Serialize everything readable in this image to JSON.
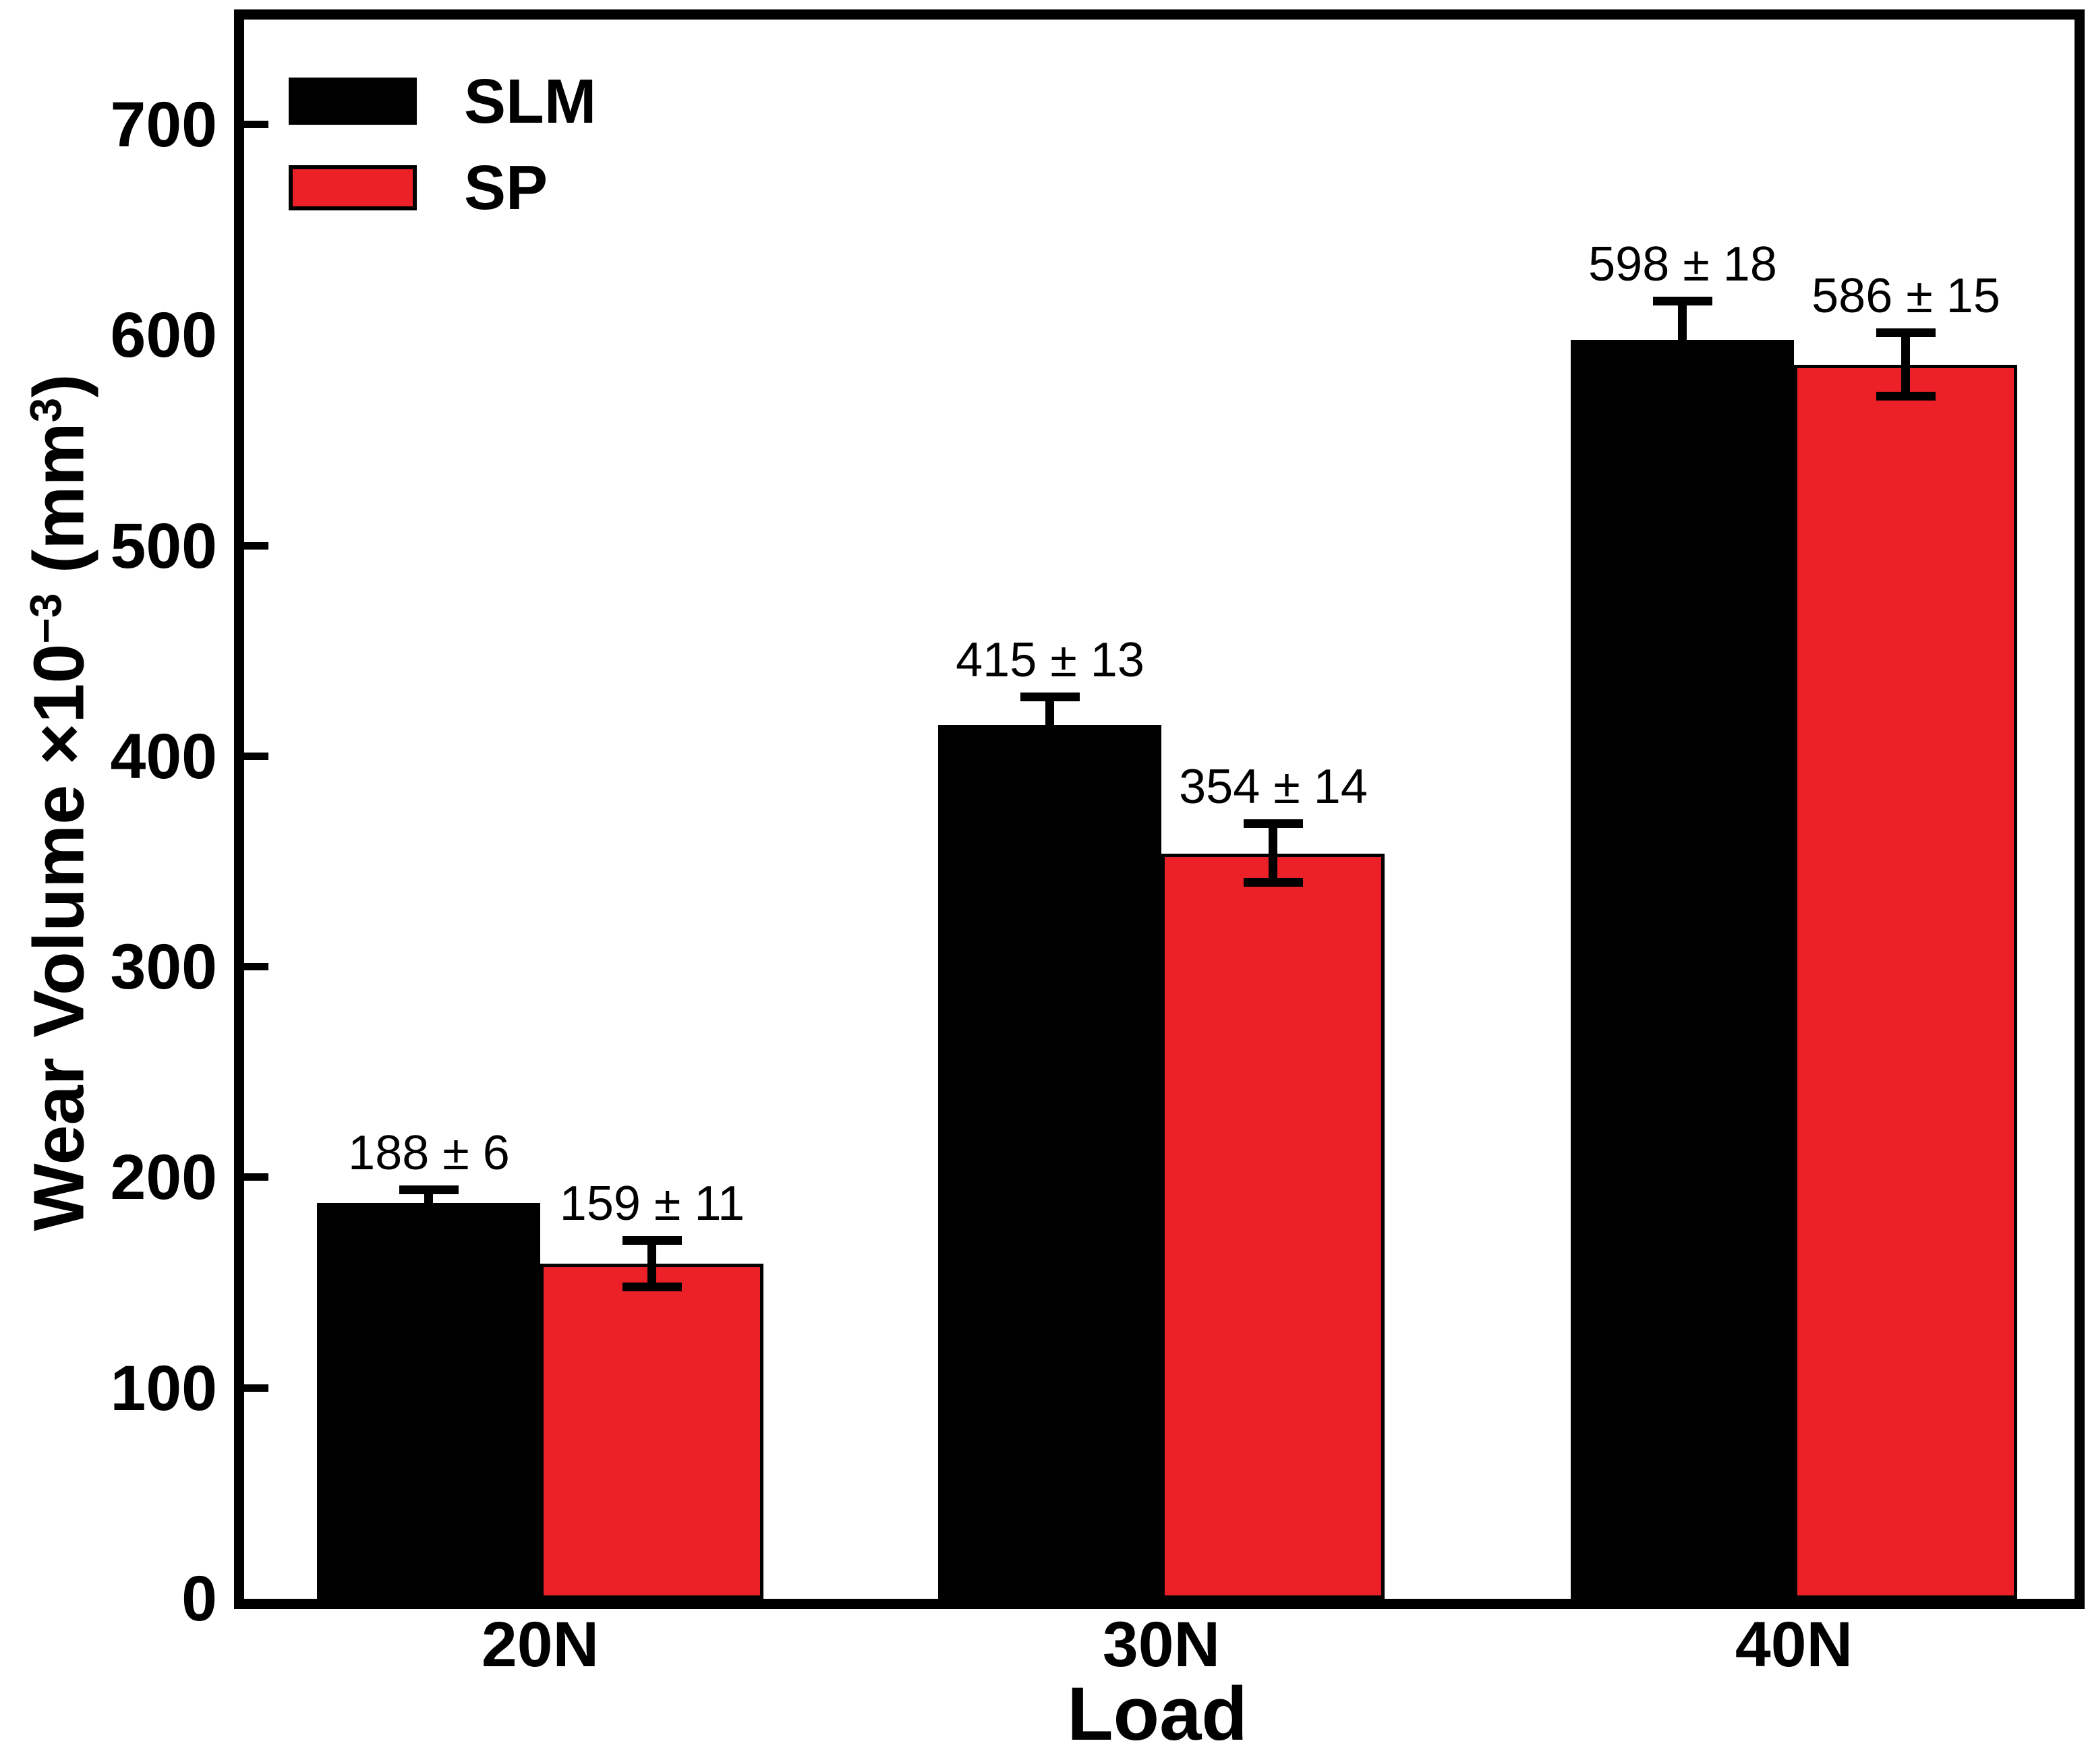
{
  "figure": {
    "background": "#ffffff",
    "axis_color": "#000000"
  },
  "chart_data": {
    "type": "bar",
    "title": "",
    "xlabel": "Load",
    "ylabel": "Wear Volume ×10⁻³ (mm³)",
    "ylabel_parts": {
      "pre": "Wear Volume ×10",
      "sup1": "−3",
      "mid": " (mm",
      "sup2": "3",
      "post": ")"
    },
    "categories": [
      "20N",
      "30N",
      "40N"
    ],
    "series": [
      {
        "name": "SLM",
        "color": "#000000",
        "values": [
          188,
          415,
          598
        ],
        "errors": [
          6,
          13,
          18
        ],
        "value_labels": [
          "188 ± 6",
          "415 ± 13",
          "598 ± 18"
        ]
      },
      {
        "name": "SP",
        "color": "#EC2127",
        "values": [
          159,
          354,
          586
        ],
        "errors": [
          11,
          14,
          15
        ],
        "value_labels": [
          "159 ± 11",
          "354 ± 14",
          "586 ± 15"
        ]
      }
    ],
    "ylim": [
      0,
      750
    ],
    "yticks": [
      {
        "value": 0,
        "label": "0",
        "mark": false
      },
      {
        "value": 100,
        "label": "100",
        "mark": true
      },
      {
        "value": 200,
        "label": "200",
        "mark": true
      },
      {
        "value": 300,
        "label": "300",
        "mark": true
      },
      {
        "value": 400,
        "label": "400",
        "mark": true
      },
      {
        "value": 500,
        "label": "500",
        "mark": true
      },
      {
        "value": 600,
        "label": "600",
        "mark": false
      },
      {
        "value": 700,
        "label": "700",
        "mark": true
      }
    ],
    "legend": {
      "position": "top-left",
      "entries": [
        "SLM",
        "SP"
      ]
    },
    "grid": false,
    "error_bars": true
  }
}
